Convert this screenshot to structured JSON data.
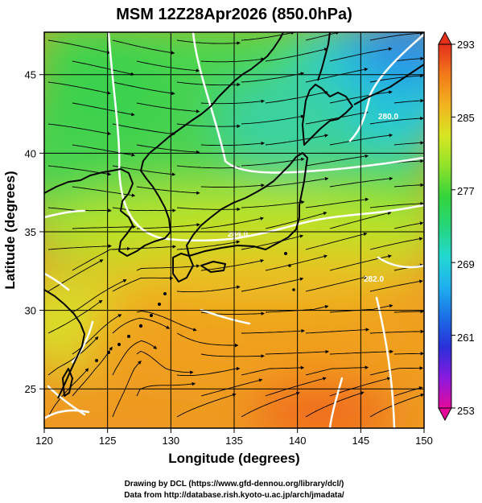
{
  "title": "MSM 12Z28Apr2026 (850.0hPa)",
  "x_axis": {
    "label": "Longitude (degrees)",
    "min": 120,
    "max": 150,
    "ticks": [
      "120",
      "125",
      "130",
      "135",
      "140",
      "145",
      "150"
    ]
  },
  "y_axis": {
    "label": "Latitude  (degrees)",
    "min": 22.5,
    "max": 47.7,
    "ticks": [
      "25",
      "30",
      "35",
      "40",
      "45"
    ]
  },
  "colorbar": {
    "labels": [
      "293",
      "285",
      "277",
      "269",
      "261",
      "253"
    ],
    "min": 253,
    "max": 293,
    "colors": [
      "#e5099a",
      "#8a1ae0",
      "#2a2fd8",
      "#1a6fe6",
      "#1fb0f0",
      "#22d8d0",
      "#25d67a",
      "#35d43a",
      "#92e22a",
      "#d8e622",
      "#f2b21e",
      "#f27a1a",
      "#e5301c"
    ]
  },
  "contour_labels": [
    "280.0",
    "282.0",
    "284.0"
  ],
  "footer": {
    "line1": "Drawing by DCL (https://www.gfd-dennou.org/library/dcl/)",
    "line2": "Data from http://database.rish.kyoto-u.ac.jp/arch/jmadata/"
  },
  "colors": {
    "warm": "#f28a1a",
    "mid": "#5ad84a",
    "cold": "#1f6fe6",
    "grid": "#000000",
    "coast": "#000000",
    "contour": "#ffffff"
  },
  "icons": [
    "streamline-arrow-icon",
    "colorbar-arrow-up-icon",
    "colorbar-arrow-down-icon"
  ]
}
